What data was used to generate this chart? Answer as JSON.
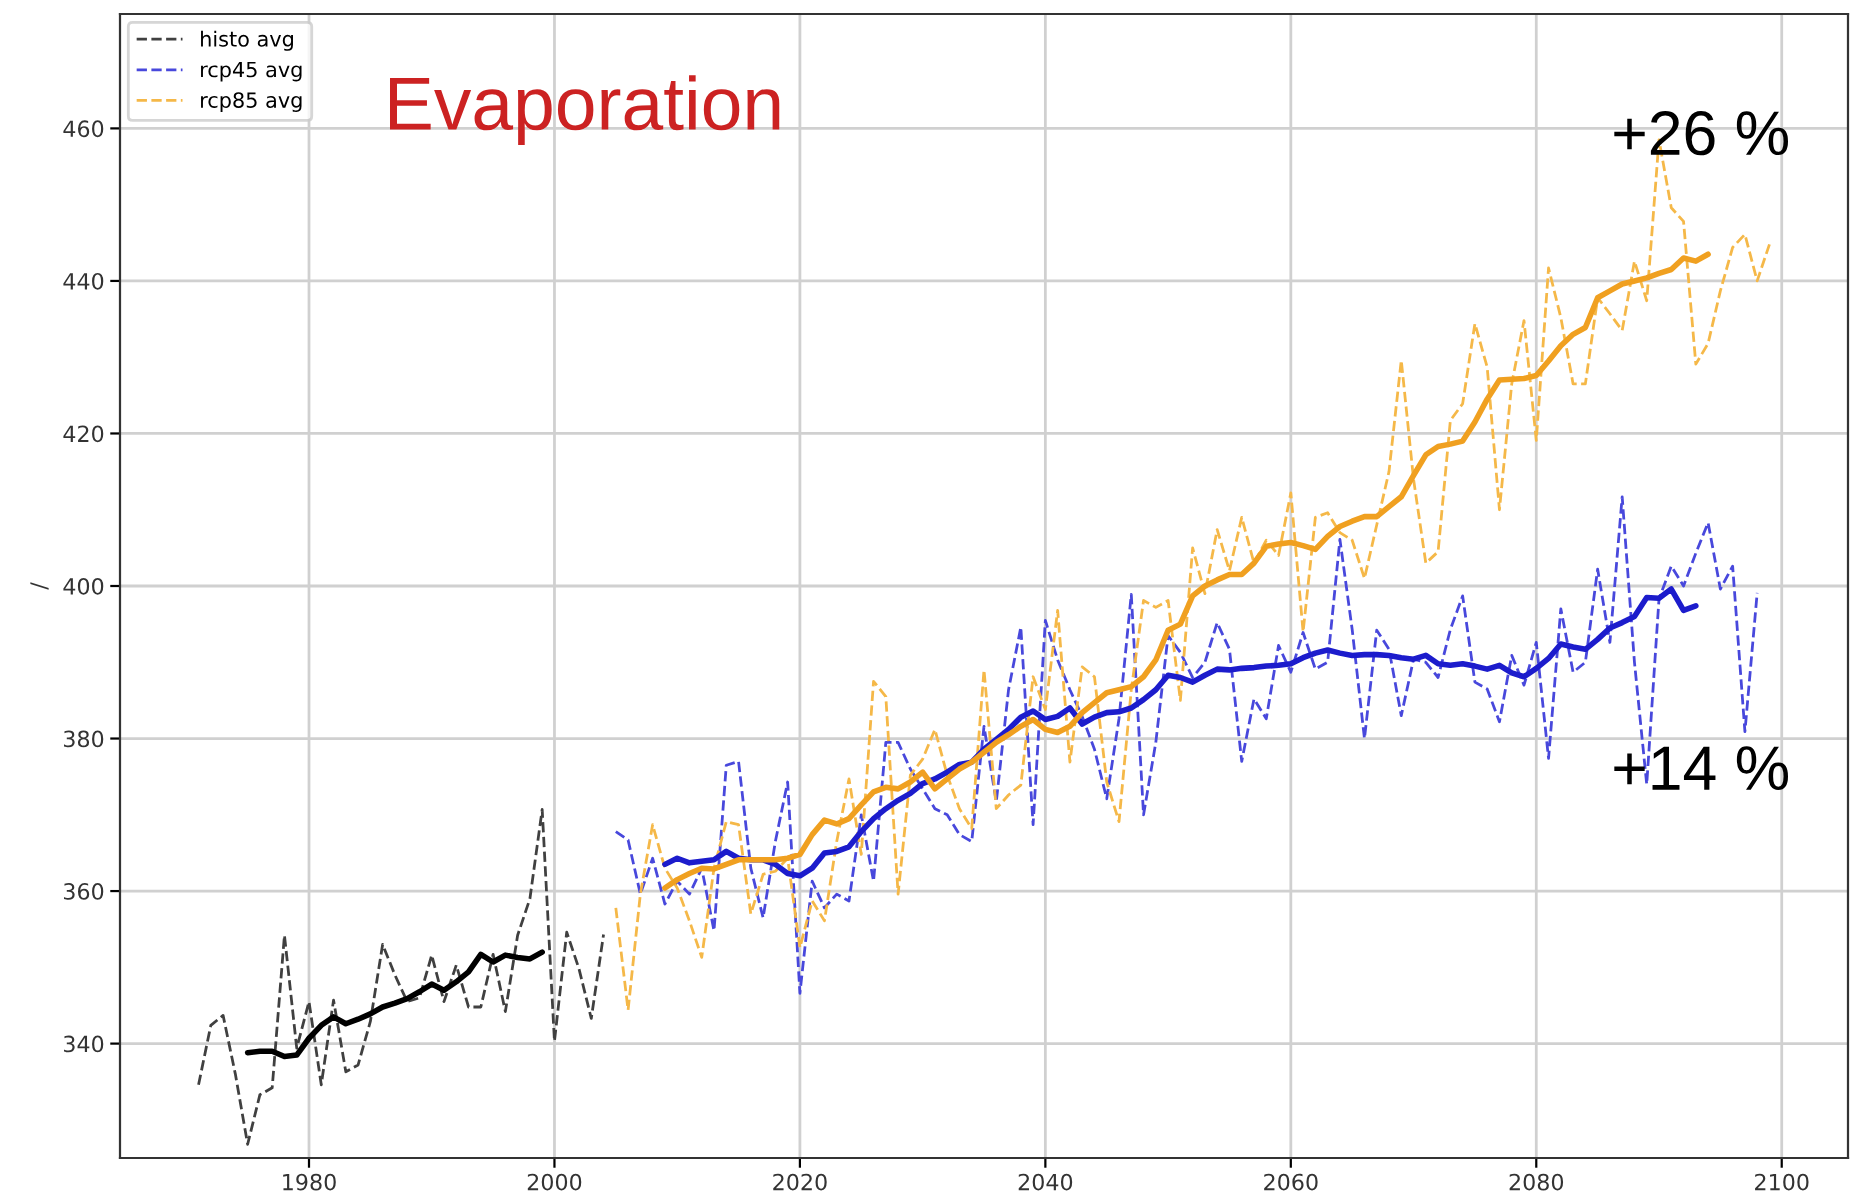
{
  "chart_data": {
    "type": "line",
    "title": "Evaporation",
    "ylabel": "/",
    "xlim": [
      1964.6,
      2105.4
    ],
    "xticks": [
      1980,
      2000,
      2020,
      2040,
      2060,
      2080,
      2100
    ],
    "ylim": [
      325,
      475
    ],
    "yticks": [
      340,
      360,
      380,
      400,
      420,
      440,
      460
    ],
    "grid": true,
    "legend": "top left",
    "annotations": [
      "+26 %",
      "+14 %"
    ],
    "series": [
      {
        "name": "histo avg",
        "color": "#404040",
        "line_style": "dashed",
        "x": [
          1971,
          1972,
          1973,
          1974,
          1975,
          1976,
          1977,
          1978,
          1979,
          1980,
          1981,
          1982,
          1983,
          1984,
          1985,
          1986,
          1987,
          1988,
          1989,
          1990,
          1991,
          1992,
          1993,
          1994,
          1995,
          1996,
          1997,
          1998,
          1999,
          2000,
          2001,
          2002,
          2003,
          2004
        ],
        "values": [
          334.6,
          342.4,
          343.7,
          336,
          326.8,
          333.3,
          334.2,
          354.2,
          339.4,
          345.5,
          334.6,
          345.7,
          336.3,
          337.2,
          342.9,
          353,
          349,
          345.5,
          346,
          351.6,
          345.5,
          350.3,
          344.8,
          344.8,
          351.7,
          344.2,
          354.2,
          359,
          370.7,
          340.3,
          354.6,
          349.8,
          343.3,
          354.3
        ]
      },
      {
        "name": "rcp45 avg",
        "color": "#4848dc",
        "line_style": "dashed",
        "x": [
          2005,
          2006,
          2007,
          2008,
          2009,
          2010,
          2011,
          2012,
          2013,
          2014,
          2015,
          2016,
          2017,
          2018,
          2019,
          2020,
          2021,
          2022,
          2023,
          2024,
          2025,
          2026,
          2027,
          2028,
          2029,
          2030,
          2031,
          2032,
          2033,
          2034,
          2035,
          2036,
          2037,
          2038,
          2039,
          2040,
          2041,
          2042,
          2043,
          2044,
          2045,
          2046,
          2047,
          2048,
          2049,
          2050,
          2051,
          2052,
          2053,
          2054,
          2055,
          2056,
          2057,
          2058,
          2059,
          2060,
          2061,
          2062,
          2063,
          2064,
          2065,
          2066,
          2067,
          2068,
          2069,
          2070,
          2071,
          2072,
          2073,
          2074,
          2075,
          2076,
          2077,
          2078,
          2079,
          2080,
          2081,
          2082,
          2083,
          2084,
          2085,
          2086,
          2087,
          2088,
          2089,
          2090,
          2091,
          2092,
          2093,
          2094,
          2095,
          2096,
          2097,
          2098
        ],
        "values": [
          367.8,
          366.7,
          359.6,
          364.3,
          358.3,
          361.3,
          359.6,
          363,
          354.8,
          376.5,
          377,
          363,
          356.5,
          366.5,
          374.3,
          346.6,
          361.3,
          357.8,
          359.6,
          358.7,
          370,
          361.3,
          379.5,
          379.5,
          376,
          373.4,
          370.8,
          370,
          367.4,
          366.5,
          381.6,
          371.7,
          386.4,
          394.6,
          368.7,
          395.5,
          390.3,
          386.4,
          382.9,
          378.6,
          372.1,
          382.6,
          398.9,
          370,
          379.5,
          393.5,
          391.3,
          388,
          390,
          395.2,
          391.7,
          377,
          385.2,
          382.6,
          392.2,
          388.7,
          393.9,
          389.1,
          390,
          406.1,
          394.3,
          380,
          394.2,
          391.7,
          383,
          390.4,
          390,
          388,
          394.3,
          398.7,
          387.4,
          386.5,
          382.2,
          390.9,
          387,
          392.6,
          377.4,
          397,
          388.7,
          390,
          402.2,
          392.6,
          411.7,
          390,
          374,
          398.3,
          402.6,
          400,
          404.3,
          408.3,
          399.6,
          402.6,
          380.9,
          399.1
        ]
      },
      {
        "name": "rcp85 avg",
        "color": "#f5b848",
        "line_style": "dashed",
        "x": [
          2005,
          2006,
          2007,
          2008,
          2009,
          2010,
          2011,
          2012,
          2013,
          2014,
          2015,
          2016,
          2017,
          2018,
          2019,
          2020,
          2021,
          2022,
          2023,
          2024,
          2025,
          2026,
          2027,
          2028,
          2029,
          2030,
          2031,
          2032,
          2033,
          2034,
          2035,
          2036,
          2037,
          2038,
          2039,
          2040,
          2041,
          2042,
          2043,
          2044,
          2045,
          2046,
          2047,
          2048,
          2049,
          2050,
          2051,
          2052,
          2053,
          2054,
          2055,
          2056,
          2057,
          2058,
          2059,
          2060,
          2061,
          2062,
          2063,
          2064,
          2065,
          2066,
          2067,
          2068,
          2069,
          2070,
          2071,
          2072,
          2073,
          2074,
          2075,
          2076,
          2077,
          2078,
          2079,
          2080,
          2081,
          2082,
          2083,
          2084,
          2085,
          2086,
          2087,
          2088,
          2089,
          2090,
          2091,
          2092,
          2093,
          2094,
          2095,
          2096,
          2097,
          2098,
          2099
        ],
        "values": [
          357.8,
          344.4,
          359.6,
          368.7,
          363,
          360.4,
          356.1,
          351.3,
          363,
          369.1,
          368.7,
          357,
          362.2,
          362.6,
          364.3,
          352.6,
          358.7,
          356.1,
          366.5,
          374.7,
          364.8,
          387.5,
          385.5,
          359.6,
          375.2,
          377.3,
          381.2,
          375.2,
          370.8,
          368.2,
          389,
          370.8,
          372.6,
          373.9,
          388.1,
          383.8,
          396.8,
          376.9,
          389.4,
          388.1,
          374.3,
          369.1,
          386.4,
          398.1,
          397.2,
          398.1,
          385,
          405,
          399,
          407.4,
          402,
          409,
          403,
          406,
          404,
          412.2,
          394,
          409,
          409.6,
          407,
          406,
          401,
          408,
          415,
          429.6,
          414,
          403,
          404.5,
          421.7,
          423.9,
          434.4,
          428.7,
          410,
          426.5,
          434.8,
          419.1,
          441.7,
          435.2,
          426.5,
          426.5,
          437.8,
          435.7,
          433.5,
          442.6,
          437.4,
          458.5,
          449.6,
          447.8,
          429.1,
          431.8,
          438.7,
          444.4,
          446.1,
          440,
          444.8
        ]
      },
      {
        "color": "#000000",
        "line_style": "solid",
        "x": [
          1975,
          1976,
          1977,
          1978,
          1979,
          1980,
          1981,
          1982,
          1983,
          1984,
          1985,
          1986,
          1987,
          1988,
          1989,
          1990,
          1991,
          1992,
          1993,
          1994,
          1995,
          1996,
          1997,
          1998,
          1999
        ],
        "values": [
          338.8,
          339,
          339,
          338.3,
          338.5,
          340.7,
          342.4,
          343.5,
          342.6,
          343.2,
          343.9,
          344.8,
          345.3,
          345.9,
          346.8,
          347.8,
          347,
          348.1,
          349.4,
          351.7,
          350.7,
          351.6,
          351.3,
          351.1,
          352
        ]
      },
      {
        "color": "#1c1ccc",
        "line_style": "solid",
        "x": [
          2009,
          2010,
          2011,
          2012,
          2013,
          2014,
          2015,
          2016,
          2017,
          2018,
          2019,
          2020,
          2021,
          2022,
          2023,
          2024,
          2025,
          2026,
          2027,
          2028,
          2029,
          2030,
          2031,
          2032,
          2033,
          2034,
          2035,
          2036,
          2037,
          2038,
          2039,
          2040,
          2041,
          2042,
          2043,
          2044,
          2045,
          2046,
          2047,
          2048,
          2049,
          2050,
          2051,
          2052,
          2053,
          2054,
          2055,
          2056,
          2057,
          2058,
          2059,
          2060,
          2061,
          2062,
          2063,
          2064,
          2065,
          2066,
          2067,
          2068,
          2069,
          2070,
          2071,
          2072,
          2073,
          2074,
          2075,
          2076,
          2077,
          2078,
          2079,
          2080,
          2081,
          2082,
          2083,
          2084,
          2085,
          2086,
          2087,
          2088,
          2089,
          2090,
          2091,
          2092,
          2093
        ],
        "values": [
          363.5,
          364.3,
          363.7,
          363.9,
          364.1,
          365.2,
          364.3,
          364.1,
          364.1,
          363.5,
          362.3,
          362,
          363,
          365,
          365.2,
          365.8,
          367.8,
          369.5,
          370.8,
          371.9,
          372.8,
          374.1,
          374.7,
          375.6,
          376.6,
          376.9,
          378.6,
          379.9,
          381.2,
          382.8,
          383.6,
          382.5,
          382.9,
          384,
          381.9,
          382.8,
          383.4,
          383.5,
          384,
          385.1,
          386.4,
          388.3,
          388,
          387.4,
          388.3,
          389.1,
          389,
          389.2,
          389.3,
          389.5,
          389.6,
          389.8,
          390.6,
          391.2,
          391.6,
          391.2,
          390.9,
          391,
          391,
          390.9,
          390.6,
          390.4,
          390.9,
          389.8,
          389.6,
          389.8,
          389.5,
          389.1,
          389.6,
          388.6,
          388.1,
          389.2,
          390.5,
          392.4,
          392,
          391.7,
          393,
          394.5,
          395.2,
          396,
          398.5,
          398.4,
          399.6,
          396.8,
          397.4
        ]
      },
      {
        "color": "#f0a020",
        "line_style": "solid",
        "x": [
          2009,
          2010,
          2011,
          2012,
          2013,
          2014,
          2015,
          2016,
          2017,
          2018,
          2019,
          2020,
          2021,
          2022,
          2023,
          2024,
          2025,
          2026,
          2027,
          2028,
          2029,
          2030,
          2031,
          2032,
          2033,
          2034,
          2035,
          2036,
          2037,
          2038,
          2039,
          2040,
          2041,
          2042,
          2043,
          2044,
          2045,
          2046,
          2047,
          2048,
          2049,
          2050,
          2051,
          2052,
          2053,
          2054,
          2055,
          2056,
          2057,
          2058,
          2059,
          2060,
          2061,
          2062,
          2063,
          2064,
          2065,
          2066,
          2067,
          2068,
          2069,
          2070,
          2071,
          2072,
          2073,
          2074,
          2075,
          2076,
          2077,
          2078,
          2079,
          2080,
          2081,
          2082,
          2083,
          2084,
          2085,
          2086,
          2087,
          2088,
          2089,
          2090,
          2091,
          2092,
          2093,
          2094
        ],
        "values": [
          360.4,
          361.5,
          362.3,
          363,
          362.9,
          363.5,
          364.1,
          364.1,
          364.1,
          364.1,
          364.3,
          364.8,
          367.4,
          369.3,
          368.8,
          369.5,
          371.3,
          373,
          373.6,
          373.4,
          374.3,
          375.6,
          373.4,
          374.7,
          376,
          376.9,
          378.2,
          379.5,
          380.5,
          381.6,
          382.5,
          381.2,
          380.8,
          381.6,
          383.4,
          384.7,
          386,
          386.4,
          386.8,
          388.1,
          390.3,
          394.2,
          395,
          398.7,
          400,
          400.8,
          401.5,
          401.5,
          403,
          405.2,
          405.5,
          405.7,
          405.3,
          404.8,
          406.5,
          407.8,
          408.5,
          409.1,
          409.1,
          410.4,
          411.7,
          414.5,
          417.2,
          418.3,
          418.6,
          419,
          421.5,
          424.5,
          427,
          427.1,
          427.2,
          427.6,
          429.5,
          431.5,
          433,
          433.9,
          437.8,
          438.7,
          439.6,
          440,
          440.4,
          441,
          441.5,
          443,
          442.6,
          443.5
        ]
      }
    ]
  }
}
